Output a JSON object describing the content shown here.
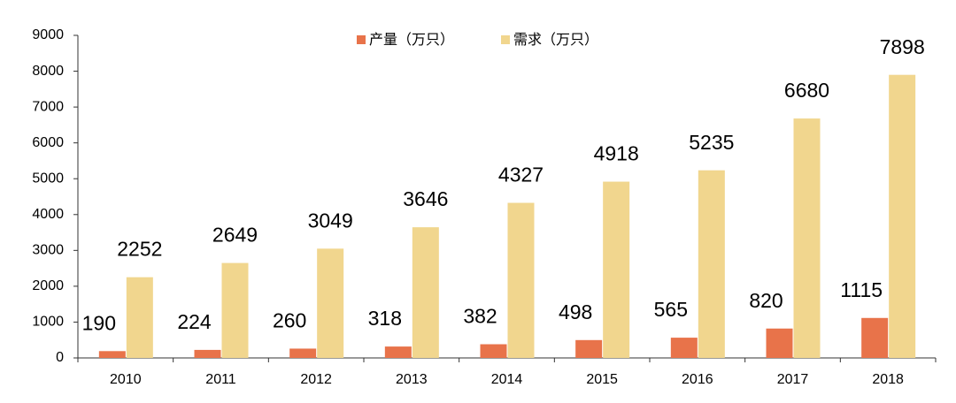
{
  "chart_data": {
    "type": "bar",
    "categories": [
      "2010",
      "2011",
      "2012",
      "2013",
      "2014",
      "2015",
      "2016",
      "2017",
      "2018"
    ],
    "series": [
      {
        "name": "产量（万只）",
        "color": "#e8734a",
        "values": [
          190,
          224,
          260,
          318,
          382,
          498,
          565,
          820,
          1115
        ]
      },
      {
        "name": "需求（万只）",
        "color": "#f1d68e",
        "values": [
          2252,
          2649,
          3049,
          3646,
          4327,
          4918,
          5235,
          6680,
          7898
        ]
      }
    ],
    "ylim": [
      0,
      9000
    ],
    "yticks": [
      0,
      1000,
      2000,
      3000,
      4000,
      5000,
      6000,
      7000,
      8000,
      9000
    ],
    "legend": "top",
    "grid": false
  }
}
